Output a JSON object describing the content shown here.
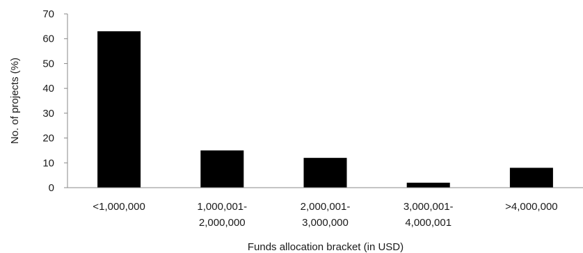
{
  "chart_data": {
    "type": "bar",
    "categories": [
      [
        "<1,000,000"
      ],
      [
        "1,000,001-",
        "2,000,000"
      ],
      [
        "2,000,001-",
        "3,000,000"
      ],
      [
        "3,000,001-",
        "4,000,001"
      ],
      [
        ">4,000,000"
      ]
    ],
    "values": [
      63,
      15,
      12,
      2,
      8
    ],
    "xlabel": "Funds allocation bracket (in USD)",
    "ylabel": "No. of projects (%)",
    "ylim": [
      0,
      70
    ],
    "yticks": [
      0,
      10,
      20,
      30,
      40,
      50,
      60,
      70
    ],
    "grid": false,
    "bar_color": "#000000",
    "axis_color": "#888888"
  }
}
